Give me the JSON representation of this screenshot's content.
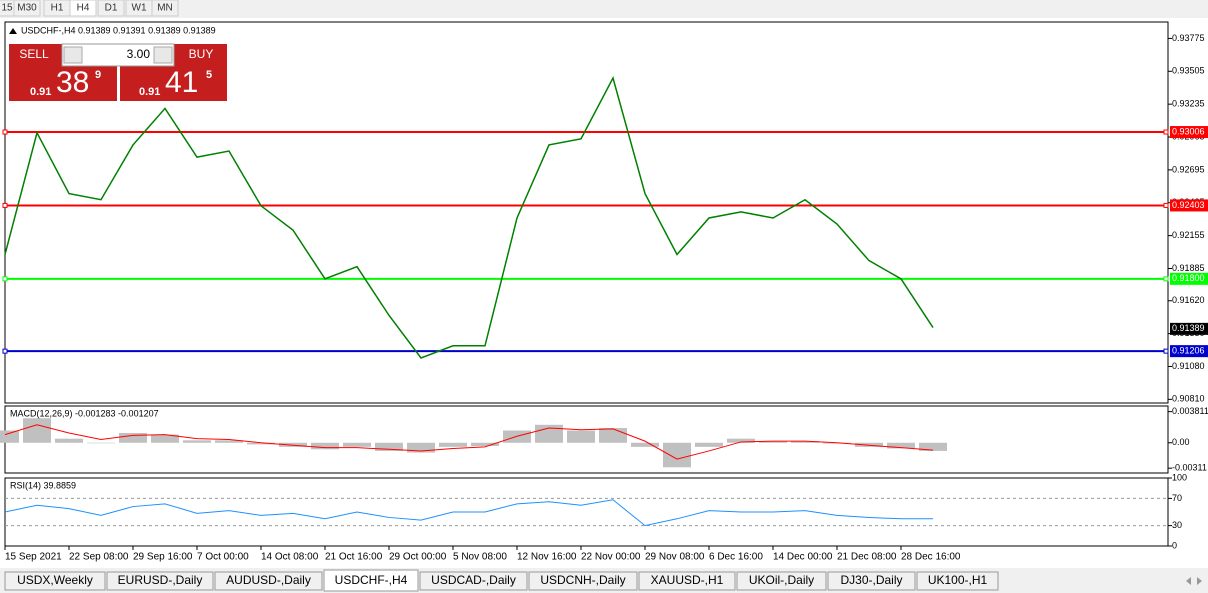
{
  "toolbar": {
    "timeframes": [
      "15",
      "M30",
      "H1",
      "H4",
      "D1",
      "W1",
      "MN"
    ]
  },
  "trade_panel": {
    "sell_label": "SELL",
    "lot": "3.00",
    "buy_label": "BUY",
    "sell_price": {
      "prefix": "0.91",
      "big": "38",
      "small": "9"
    },
    "buy_price": {
      "prefix": "0.91",
      "big": "41",
      "small": "5"
    }
  },
  "chart_data": [
    {
      "type": "line",
      "title": "USDCHF-,H4  0.91389 0.91391 0.91389 0.91389",
      "categories": [
        "15 Sep 2021",
        null,
        "22 Sep 08:00",
        null,
        "29 Sep 16:00",
        null,
        "7 Oct 00:00",
        null,
        "14 Oct 08:00",
        null,
        "21 Oct 16:00",
        null,
        "29 Oct 00:00",
        null,
        "5 Nov 08:00",
        null,
        "12 Nov 16:00",
        null,
        "22 Nov 00:00",
        null,
        "29 Nov 08:00",
        null,
        "6 Dec 16:00",
        null,
        "14 Dec 00:00",
        null,
        "21 Dec 08:00",
        null,
        "28 Dec 16:00",
        null
      ],
      "values": [
        0.92,
        0.93,
        0.925,
        0.9245,
        0.929,
        0.932,
        0.928,
        0.9285,
        0.924,
        0.922,
        0.918,
        0.919,
        0.915,
        0.9115,
        0.9125,
        0.9125,
        0.923,
        0.929,
        0.9295,
        0.9345,
        0.925,
        0.92,
        0.923,
        0.9235,
        0.923,
        0.9245,
        0.9225,
        0.9195,
        0.918,
        0.914
      ],
      "color": "#008000",
      "ylim": [
        0.9078,
        0.9391
      ],
      "yticks": [
        0.93775,
        0.93505,
        0.93235,
        0.92965,
        0.92695,
        0.92425,
        {
          "value": 0.92155,
          "label": "0.92155"
        },
        0.91885,
        {
          "value": 0.9162,
          "label": "0.91620"
        },
        {
          "value": 0.9135,
          "label": "0.91350"
        },
        {
          "value": 0.9108,
          "label": "0.91080"
        },
        {
          "value": 0.9081,
          "label": "0.90810"
        }
      ],
      "levels": [
        {
          "value": 0.93006,
          "color": "#ff0000"
        },
        {
          "value": 0.92403,
          "color": "#ff0000"
        },
        {
          "value": 0.918,
          "label": "0.91800",
          "color": "#00ff00"
        },
        {
          "value": 0.91206,
          "color": "#0000cd"
        }
      ],
      "current_price": 0.91389
    },
    {
      "type": "bar",
      "title": "MACD(12,26,9) -0.001283 -0.001207",
      "values": [
        0.0015,
        0.003,
        0.0005,
        0.0,
        0.0012,
        0.001,
        0.0003,
        0.0003,
        -0.0002,
        -0.0005,
        -0.0008,
        -0.0005,
        -0.001,
        -0.0012,
        -0.0005,
        -0.0004,
        0.0015,
        0.0022,
        0.0015,
        0.0018,
        -0.0005,
        -0.003,
        -0.0005,
        0.0005,
        0.0002,
        0.0002,
        -0.0001,
        -0.0005,
        -0.0007,
        -0.001
      ],
      "color": "#c0c0c0",
      "signal_values": [
        0.001,
        0.0022,
        0.0012,
        0.0004,
        0.0009,
        0.001,
        0.0005,
        0.0004,
        0.0,
        -0.0003,
        -0.0006,
        -0.0006,
        -0.0008,
        -0.001,
        -0.0007,
        -0.0005,
        0.0008,
        0.0018,
        0.0016,
        0.0017,
        0.0002,
        -0.002,
        -0.001,
        0.0001,
        0.0002,
        0.0002,
        0.0,
        -0.0003,
        -0.0006,
        -0.0009
      ],
      "signal_color": "#ff0000",
      "ylim": [
        -0.0037,
        0.0045
      ],
      "yticks": [
        0.003811,
        {
          "value": 0,
          "label": "0.00"
        },
        -0.00311
      ]
    },
    {
      "type": "line",
      "title": "RSI(14) 39.8859",
      "values": [
        50,
        60,
        55,
        45,
        58,
        62,
        48,
        52,
        45,
        48,
        40,
        50,
        42,
        38,
        50,
        50,
        62,
        65,
        60,
        68,
        30,
        40,
        52,
        50,
        50,
        52,
        45,
        42,
        40,
        40
      ],
      "color": "#1e90ff",
      "ylim": [
        0,
        100
      ],
      "yticks": [
        100,
        70,
        30,
        0
      ],
      "levels": [
        70,
        30
      ]
    }
  ],
  "tabs": {
    "items": [
      "USDX,Weekly",
      "EURUSD-,Daily",
      "AUDUSD-,Daily",
      "USDCHF-,H4",
      "USDCAD-,Daily",
      "USDCNH-,Daily",
      "XAUUSD-,H1",
      "UKOil-,Daily",
      "DJ30-,Daily",
      "UK100-,H1"
    ],
    "active": 3
  }
}
